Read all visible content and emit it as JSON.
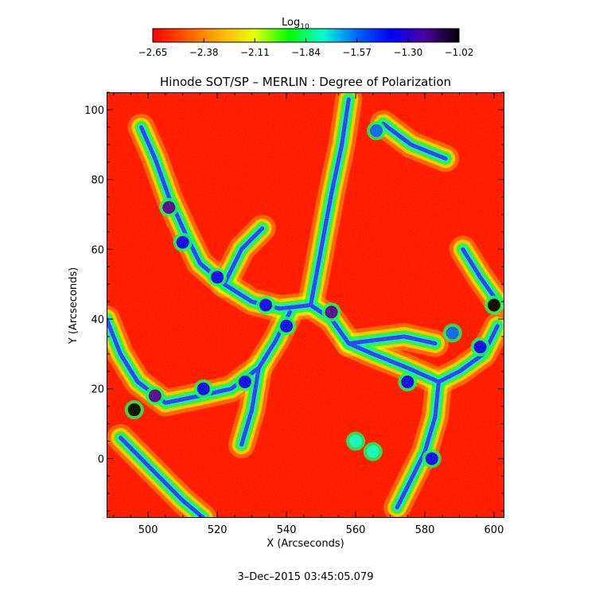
{
  "chart_data": {
    "type": "heatmap",
    "title": "Hinode SOT/SP – MERLIN : Degree of Polarization",
    "xlabel": "X (Arcseconds)",
    "ylabel": "Y (Arcseconds)",
    "xlim": [
      488,
      603
    ],
    "ylim": [
      -17,
      105
    ],
    "x_ticks": [
      "500",
      "520",
      "540",
      "560",
      "580",
      "600"
    ],
    "y_ticks": [
      "0",
      "20",
      "40",
      "60",
      "80",
      "100"
    ],
    "grid": false,
    "colorbar": {
      "label_main": "Log",
      "label_sub": "10",
      "range": [
        -2.65,
        -1.02
      ],
      "tick_labels": [
        "−2.65",
        "−2.38",
        "−2.11",
        "−1.84",
        "−1.57",
        "−1.30",
        "−1.02"
      ],
      "colormap": [
        "#ff0000",
        "#ff5a00",
        "#ffb400",
        "#e6ff00",
        "#00ff00",
        "#00ffd2",
        "#0064ff",
        "#0000ff",
        "#4b00a0",
        "#000000"
      ]
    },
    "features": [
      {
        "name": "network lane",
        "points": [
          [
            498,
            95
          ],
          [
            502,
            86
          ],
          [
            506,
            75
          ],
          [
            511,
            64
          ],
          [
            515,
            56
          ],
          [
            522,
            50
          ],
          [
            530,
            45
          ],
          [
            538,
            43
          ],
          [
            547,
            44
          ],
          [
            553,
            40
          ],
          [
            558,
            33
          ],
          [
            565,
            30
          ],
          [
            575,
            26
          ],
          [
            584,
            22
          ],
          [
            590,
            25
          ],
          [
            597,
            30
          ],
          [
            601,
            38
          ]
        ]
      },
      {
        "name": "network lane",
        "points": [
          [
            488,
            40
          ],
          [
            492,
            30
          ],
          [
            497,
            22
          ],
          [
            505,
            16
          ],
          [
            515,
            18
          ],
          [
            524,
            20
          ],
          [
            532,
            26
          ],
          [
            537,
            34
          ],
          [
            541,
            42
          ]
        ]
      },
      {
        "name": "network lane",
        "points": [
          [
            547,
            44
          ],
          [
            550,
            60
          ],
          [
            553,
            76
          ],
          [
            556,
            90
          ],
          [
            558,
            103
          ]
        ]
      },
      {
        "name": "network lane",
        "points": [
          [
            584,
            22
          ],
          [
            583,
            12
          ],
          [
            580,
            2
          ],
          [
            576,
            -6
          ],
          [
            572,
            -14
          ]
        ]
      },
      {
        "name": "network lane",
        "points": [
          [
            522,
            50
          ],
          [
            527,
            60
          ],
          [
            533,
            66
          ]
        ]
      },
      {
        "name": "network lane",
        "points": [
          [
            591,
            60
          ],
          [
            596,
            52
          ],
          [
            601,
            45
          ]
        ]
      },
      {
        "name": "network lane",
        "points": [
          [
            558,
            33
          ],
          [
            566,
            34
          ],
          [
            574,
            35
          ],
          [
            583,
            33
          ]
        ]
      },
      {
        "name": "network lane",
        "points": [
          [
            492,
            6
          ],
          [
            500,
            -2
          ],
          [
            510,
            -12
          ],
          [
            516,
            -17
          ]
        ]
      },
      {
        "name": "network lane",
        "points": [
          [
            532,
            26
          ],
          [
            530,
            14
          ],
          [
            527,
            4
          ]
        ]
      },
      {
        "name": "network lane",
        "points": [
          [
            568,
            96
          ],
          [
            576,
            90
          ],
          [
            586,
            86
          ]
        ]
      }
    ],
    "strong_patches": [
      {
        "x": 496,
        "y": 14,
        "value": -1.05
      },
      {
        "x": 502,
        "y": 18,
        "value": -1.2
      },
      {
        "x": 506,
        "y": 72,
        "value": -1.15
      },
      {
        "x": 510,
        "y": 62,
        "value": -1.35
      },
      {
        "x": 600,
        "y": 44,
        "value": -1.1
      },
      {
        "x": 596,
        "y": 32,
        "value": -1.3
      },
      {
        "x": 553,
        "y": 42,
        "value": -1.25
      },
      {
        "x": 582,
        "y": 0,
        "value": -1.3
      },
      {
        "x": 560,
        "y": 5,
        "value": -1.75
      },
      {
        "x": 565,
        "y": 2,
        "value": -1.8
      },
      {
        "x": 575,
        "y": 22,
        "value": -1.35
      },
      {
        "x": 528,
        "y": 22,
        "value": -1.4
      },
      {
        "x": 516,
        "y": 20,
        "value": -1.45
      },
      {
        "x": 540,
        "y": 38,
        "value": -1.35
      },
      {
        "x": 588,
        "y": 36,
        "value": -1.5
      },
      {
        "x": 566,
        "y": 94,
        "value": -1.55
      },
      {
        "x": 520,
        "y": 52,
        "value": -1.35
      },
      {
        "x": 534,
        "y": 44,
        "value": -1.3
      }
    ]
  },
  "footer": {
    "timestamp": "3–Dec–2015 03:45:05.079"
  }
}
